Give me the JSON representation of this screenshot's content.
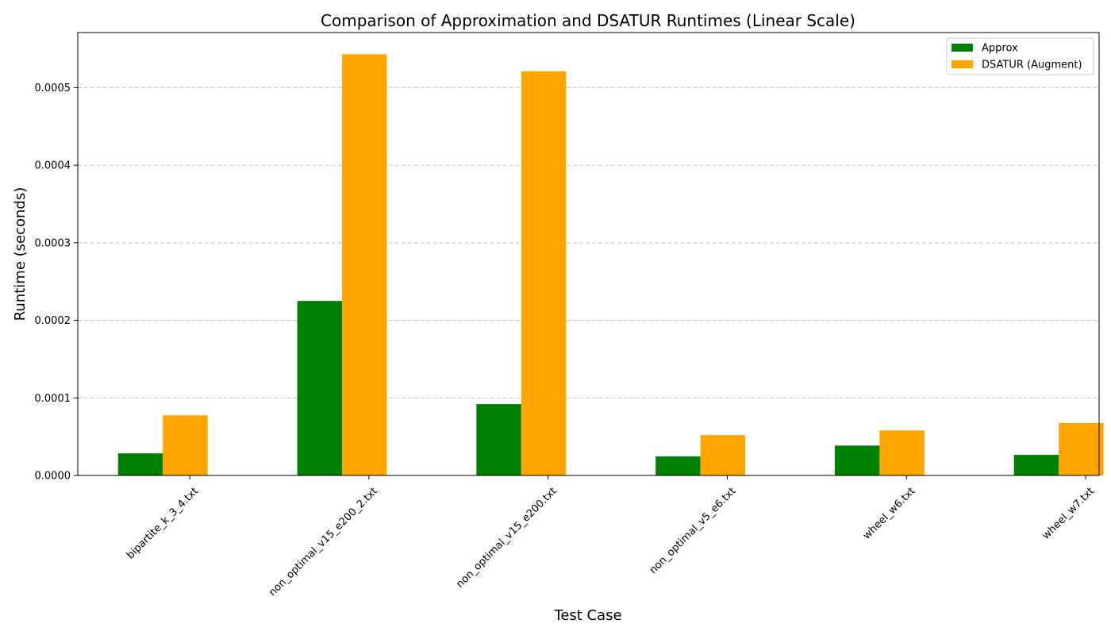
{
  "chart_data": {
    "type": "bar",
    "title": "Comparison of Approximation and DSATUR Runtimes (Linear Scale)",
    "xlabel": "Test Case",
    "ylabel": "Runtime (seconds)",
    "categories": [
      "bipartite_k_3_4.txt",
      "non_optimal_v15_e200_2.txt",
      "non_optimal_v15_e200.txt",
      "non_optimal_v5_e6.txt",
      "wheel_w6.txt",
      "wheel_w7.txt"
    ],
    "series": [
      {
        "name": "Approx",
        "color": "#008000",
        "values": [
          2.85e-05,
          0.000225,
          9.2e-05,
          2.45e-05,
          3.85e-05,
          2.65e-05
        ]
      },
      {
        "name": "DSATUR (Augment)",
        "color": "#ffa500",
        "values": [
          7.75e-05,
          0.000543,
          0.000521,
          5.2e-05,
          5.8e-05,
          6.75e-05
        ]
      }
    ],
    "ylim": [
      0,
      0.000571
    ],
    "yticks": [
      "0.0000",
      "0.0001",
      "0.0002",
      "0.0003",
      "0.0004",
      "0.0005"
    ],
    "ytick_values": [
      0,
      0.0001,
      0.0002,
      0.0003,
      0.0004,
      0.0005
    ],
    "grid": "y-dashed",
    "legend_position": "top-right"
  }
}
